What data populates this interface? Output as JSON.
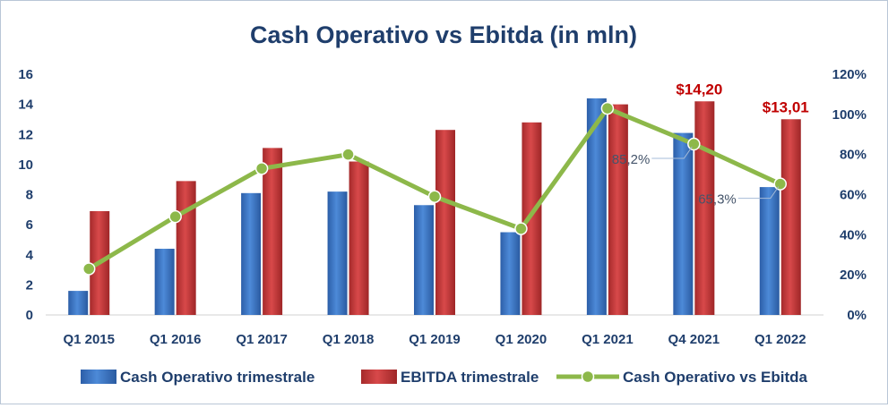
{
  "chart_data": {
    "type": "bar",
    "title": "Cash Operativo vs Ebitda (in mln)",
    "categories": [
      "Q1 2015",
      "Q1 2016",
      "Q1 2017",
      "Q1 2018",
      "Q1 2019",
      "Q1 2020",
      "Q1 2021",
      "Q4 2021",
      "Q1 2022"
    ],
    "y_left": {
      "ylim": [
        0,
        16
      ],
      "ticks": [
        "0",
        "2",
        "4",
        "6",
        "8",
        "10",
        "12",
        "14",
        "16"
      ]
    },
    "y_right": {
      "ylim": [
        0,
        1.2
      ],
      "ticks": [
        "0%",
        "20%",
        "40%",
        "60%",
        "80%",
        "100%",
        "120%"
      ]
    },
    "grid": false,
    "legend_position": "bottom",
    "series": [
      {
        "name": "Cash Operativo trimestrale",
        "type": "bar",
        "axis": "left",
        "color": "#3a73c2",
        "values": [
          1.6,
          4.4,
          8.1,
          8.2,
          7.3,
          5.5,
          14.4,
          12.1,
          8.5
        ]
      },
      {
        "name": "EBITDA trimestrale",
        "type": "bar",
        "axis": "left",
        "color": "#c0393a",
        "values": [
          6.9,
          8.9,
          11.1,
          10.2,
          12.3,
          12.8,
          14.0,
          14.2,
          13.01
        ]
      },
      {
        "name": "Cash Operativo vs Ebitda",
        "type": "line",
        "axis": "right",
        "color": "#8db84a",
        "values": [
          0.23,
          0.49,
          0.73,
          0.8,
          0.59,
          0.43,
          1.03,
          0.852,
          0.653
        ]
      }
    ],
    "annotations": [
      {
        "category": "Q4 2021",
        "series": "EBITDA trimestrale",
        "text": "$14,20",
        "color": "#c00000"
      },
      {
        "category": "Q1 2022",
        "series": "EBITDA trimestrale",
        "text": "$13,01",
        "color": "#c00000"
      },
      {
        "category": "Q4 2021",
        "series": "Cash Operativo vs Ebitda",
        "text": "85,2%",
        "color": "#44546a"
      },
      {
        "category": "Q1 2022",
        "series": "Cash Operativo vs Ebitda",
        "text": "65,3%",
        "color": "#44546a"
      }
    ]
  }
}
